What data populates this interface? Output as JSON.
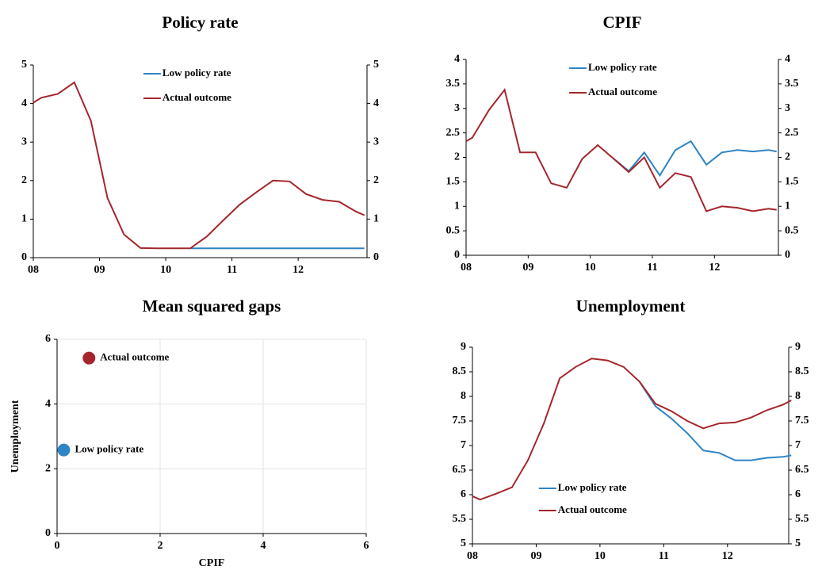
{
  "chart_data": [
    {
      "type": "line",
      "title": "Policy rate",
      "x": [
        8.0,
        8.12,
        8.37,
        8.62,
        8.87,
        9.12,
        9.37,
        9.62,
        9.87,
        10.12,
        10.37,
        10.62,
        10.87,
        11.12,
        11.37,
        11.62,
        11.87,
        12.12,
        12.37,
        12.62,
        12.87,
        13.0
      ],
      "series": [
        {
          "name": "Low policy rate",
          "color": "#2e84c4",
          "values": [
            null,
            null,
            null,
            null,
            null,
            null,
            null,
            null,
            null,
            null,
            0.24,
            0.24,
            0.24,
            0.24,
            0.24,
            0.24,
            0.24,
            0.24,
            0.24,
            0.24,
            0.24,
            0.24
          ]
        },
        {
          "name": "Actual outcome",
          "color": "#a4262c",
          "values": [
            4.02,
            4.15,
            4.25,
            4.55,
            3.55,
            1.55,
            0.6,
            0.25,
            0.24,
            0.24,
            0.24,
            0.55,
            0.97,
            1.38,
            1.7,
            2.0,
            1.98,
            1.65,
            1.5,
            1.45,
            1.2,
            1.1
          ]
        }
      ],
      "xlim": [
        8,
        13.04
      ],
      "xticks": [
        {
          "value": 8,
          "label": "08"
        },
        {
          "value": 9,
          "label": "09"
        },
        10,
        11,
        12
      ],
      "ylim": [
        0,
        5
      ],
      "yticks": [
        0,
        1,
        2,
        3,
        4,
        5
      ],
      "y2lim": [
        0,
        5
      ],
      "y2ticks": [
        0,
        1,
        2,
        3,
        4,
        5
      ],
      "legend": "upper center"
    },
    {
      "type": "line",
      "title": "CPIF",
      "x": [
        8.0,
        8.1,
        8.37,
        8.62,
        8.87,
        9.12,
        9.37,
        9.62,
        9.87,
        10.12,
        10.37,
        10.62,
        10.87,
        11.12,
        11.37,
        11.62,
        11.87,
        12.12,
        12.37,
        12.62,
        12.87,
        13.0
      ],
      "series": [
        {
          "name": "Low policy rate",
          "color": "#2e84c4",
          "values": [
            null,
            null,
            null,
            null,
            null,
            null,
            null,
            null,
            null,
            null,
            1.98,
            1.72,
            2.1,
            1.63,
            2.15,
            2.33,
            1.85,
            2.1,
            2.15,
            2.12,
            2.15,
            2.12
          ]
        },
        {
          "name": "Actual outcome",
          "color": "#a4262c",
          "values": [
            2.33,
            2.4,
            2.97,
            3.38,
            2.1,
            2.1,
            1.47,
            1.38,
            1.97,
            2.25,
            1.98,
            1.7,
            2.0,
            1.38,
            1.68,
            1.6,
            0.9,
            1.0,
            0.97,
            0.9,
            0.95,
            0.93
          ]
        }
      ],
      "xlim": [
        8,
        13.03
      ],
      "xticks": [
        {
          "value": 8,
          "label": "08"
        },
        {
          "value": 9,
          "label": "09"
        },
        10,
        11,
        12
      ],
      "ylim": [
        0,
        4
      ],
      "yticks": [
        0,
        0.5,
        1,
        1.5,
        2,
        2.5,
        3,
        3.5,
        4
      ],
      "y2lim": [
        0,
        4
      ],
      "y2ticks": [
        0,
        0.5,
        1,
        1.5,
        2,
        2.5,
        3,
        3.5,
        4
      ],
      "legend": "upper center"
    },
    {
      "type": "scatter",
      "title": "Mean squared gaps",
      "xlabel": "CPIF",
      "ylabel": "Unemployment",
      "series": [
        {
          "name": "Actual outcome",
          "color": "#a4262c",
          "x": [
            0.62
          ],
          "values": [
            5.42
          ]
        },
        {
          "name": "Low policy rate",
          "color": "#2e84c4",
          "x": [
            0.13
          ],
          "values": [
            2.58
          ]
        }
      ],
      "xlim": [
        0,
        6
      ],
      "xticks": [
        0,
        2,
        4,
        6
      ],
      "ylim": [
        0,
        6
      ],
      "yticks": [
        0,
        2,
        4,
        6
      ],
      "grid": true
    },
    {
      "type": "line",
      "title": "Unemployment",
      "x": [
        8.0,
        8.12,
        8.37,
        8.62,
        8.87,
        9.12,
        9.37,
        9.62,
        9.87,
        10.12,
        10.37,
        10.62,
        10.87,
        11.12,
        11.37,
        11.62,
        11.87,
        12.12,
        12.37,
        12.62,
        12.87,
        13.0
      ],
      "series": [
        {
          "name": "Low policy rate",
          "color": "#2e84c4",
          "values": [
            null,
            null,
            null,
            null,
            null,
            null,
            null,
            null,
            null,
            null,
            null,
            8.3,
            7.8,
            7.55,
            7.25,
            6.9,
            6.85,
            6.7,
            6.7,
            6.75,
            6.77,
            6.8
          ]
        },
        {
          "name": "Actual outcome",
          "color": "#a4262c",
          "values": [
            5.97,
            5.9,
            6.02,
            6.15,
            6.7,
            7.45,
            8.37,
            8.6,
            8.77,
            8.73,
            8.6,
            8.3,
            7.85,
            7.7,
            7.5,
            7.35,
            7.45,
            7.47,
            7.57,
            7.72,
            7.83,
            7.92
          ]
        }
      ],
      "xlim": [
        8,
        12.96
      ],
      "xticks": [
        {
          "value": 8,
          "label": "08"
        },
        {
          "value": 9,
          "label": "09"
        },
        10,
        11,
        12
      ],
      "ylim": [
        5,
        9
      ],
      "yticks": [
        5,
        5.5,
        6,
        6.5,
        7,
        7.5,
        8,
        8.5,
        9
      ],
      "y2lim": [
        5,
        9
      ],
      "y2ticks": [
        5,
        5.5,
        6,
        6.5,
        7,
        7.5,
        8,
        8.5,
        9
      ],
      "legend": "lower left"
    }
  ]
}
